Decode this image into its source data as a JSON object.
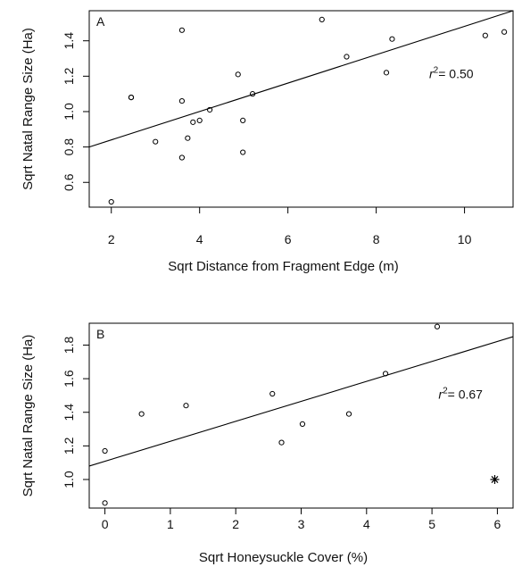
{
  "chart_data": [
    {
      "type": "scatter",
      "panel_label": "A",
      "xlabel": "Sqrt Distance from Fragment Edge (m)",
      "ylabel": "Sqrt Natal Range Size (Ha)",
      "xlim": [
        1.5,
        11.1
      ],
      "ylim": [
        0.46,
        1.57
      ],
      "xticks": [
        2,
        4,
        6,
        8,
        10
      ],
      "yticks": [
        0.6,
        0.8,
        1.0,
        1.2,
        1.4
      ],
      "ytick_labels": [
        "0.6",
        "0.8",
        "1.0",
        "1.2",
        "1.4"
      ],
      "grid": false,
      "points": [
        {
          "x": 2.0,
          "y": 0.49
        },
        {
          "x": 2.45,
          "y": 1.08
        },
        {
          "x": 2.45,
          "y": 1.08
        },
        {
          "x": 3.0,
          "y": 0.83
        },
        {
          "x": 3.6,
          "y": 1.46
        },
        {
          "x": 3.6,
          "y": 1.06
        },
        {
          "x": 3.6,
          "y": 0.74
        },
        {
          "x": 3.73,
          "y": 0.85
        },
        {
          "x": 3.85,
          "y": 0.94
        },
        {
          "x": 4.0,
          "y": 0.95
        },
        {
          "x": 4.23,
          "y": 1.01
        },
        {
          "x": 4.87,
          "y": 1.21
        },
        {
          "x": 4.98,
          "y": 0.95
        },
        {
          "x": 4.98,
          "y": 0.77
        },
        {
          "x": 5.2,
          "y": 1.1
        },
        {
          "x": 6.77,
          "y": 1.52
        },
        {
          "x": 7.33,
          "y": 1.31
        },
        {
          "x": 8.23,
          "y": 1.22
        },
        {
          "x": 8.36,
          "y": 1.41
        },
        {
          "x": 10.47,
          "y": 1.43
        },
        {
          "x": 10.9,
          "y": 1.45
        }
      ],
      "fit_line": {
        "x": [
          1.5,
          11.1
        ],
        "y": [
          0.8,
          1.57
        ]
      },
      "annotation": {
        "text_main": "r",
        "text_sup": "2",
        "text_rest": "= 0.50",
        "x": 9.2,
        "y": 1.19
      }
    },
    {
      "type": "scatter",
      "panel_label": "B",
      "xlabel": "Sqrt Honeysuckle Cover (%)",
      "ylabel": "Sqrt Natal Range Size (Ha)",
      "xlim": [
        -0.24,
        6.24
      ],
      "ylim": [
        0.83,
        1.93
      ],
      "xticks": [
        0,
        1,
        2,
        3,
        4,
        5,
        6
      ],
      "yticks": [
        1.0,
        1.2,
        1.4,
        1.6,
        1.8
      ],
      "ytick_labels": [
        "1.0",
        "1.2",
        "1.4",
        "1.6",
        "1.8"
      ],
      "grid": false,
      "points": [
        {
          "x": 0.0,
          "y": 1.17
        },
        {
          "x": 0.0,
          "y": 0.86
        },
        {
          "x": 0.56,
          "y": 1.39
        },
        {
          "x": 1.24,
          "y": 1.44
        },
        {
          "x": 2.56,
          "y": 1.51
        },
        {
          "x": 2.7,
          "y": 1.22
        },
        {
          "x": 3.02,
          "y": 1.33
        },
        {
          "x": 3.73,
          "y": 1.39
        },
        {
          "x": 4.29,
          "y": 1.63
        },
        {
          "x": 5.08,
          "y": 1.91
        }
      ],
      "star_point": {
        "x": 5.96,
        "y": 1.0
      },
      "fit_line": {
        "x": [
          -0.24,
          6.24
        ],
        "y": [
          1.08,
          1.85
        ]
      },
      "annotation": {
        "text_main": "r",
        "text_sup": "2",
        "text_rest": "= 0.67",
        "x": 5.1,
        "y": 1.48
      }
    }
  ]
}
